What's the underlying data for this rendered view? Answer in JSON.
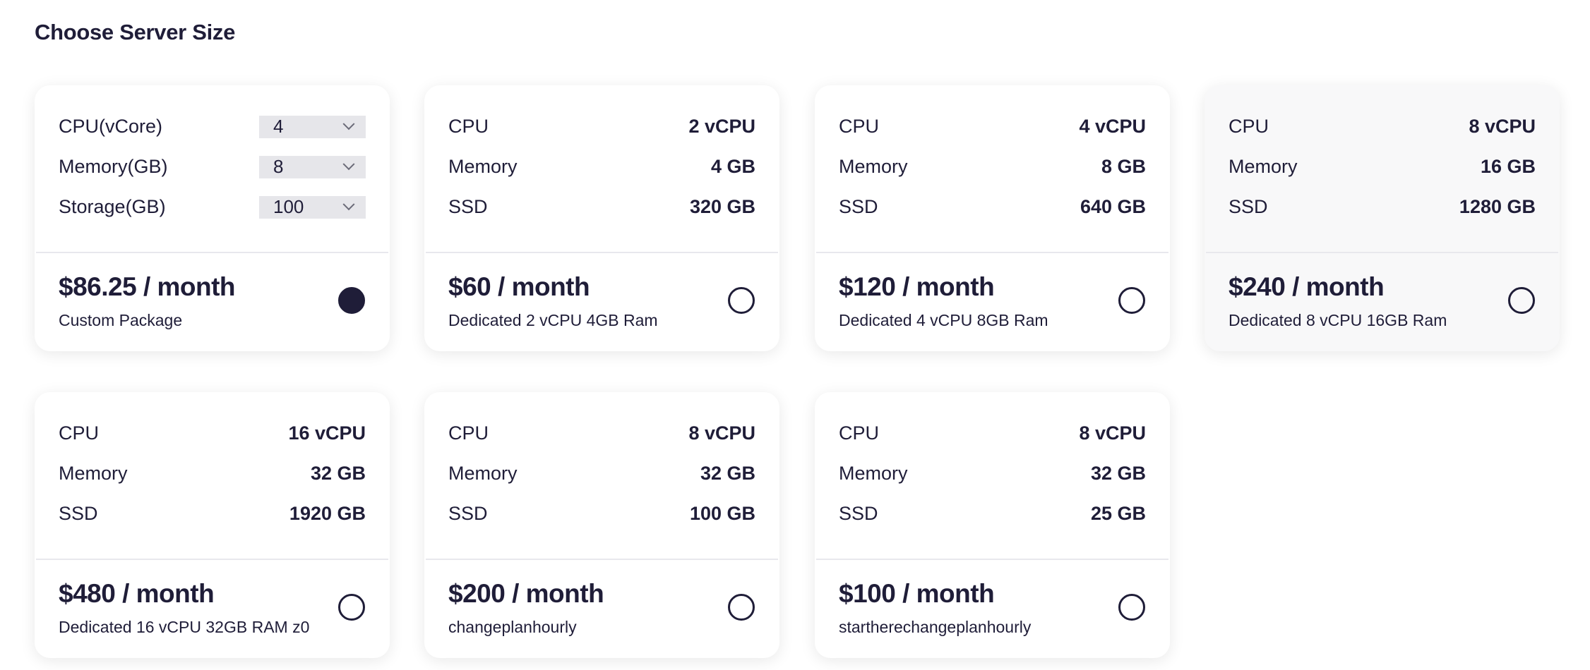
{
  "title": "Choose Server Size",
  "colors": {
    "text": "#1f1d38",
    "select_bg": "#e6e6ea",
    "selected_radio": "#1f1d38"
  },
  "custom": {
    "fields": [
      {
        "label": "CPU(vCore)",
        "value": "4"
      },
      {
        "label": "Memory(GB)",
        "value": "8"
      },
      {
        "label": "Storage(GB)",
        "value": "100"
      }
    ],
    "price": "$86.25 / month",
    "name": "Custom Package",
    "selected": true
  },
  "plans": [
    {
      "cpu_label": "CPU",
      "cpu": "2 vCPU",
      "mem_label": "Memory",
      "mem": "4 GB",
      "ssd_label": "SSD",
      "ssd": "320 GB",
      "price": "$60 / month",
      "name": "Dedicated 2 vCPU 4GB Ram",
      "selected": false
    },
    {
      "cpu_label": "CPU",
      "cpu": "4 vCPU",
      "mem_label": "Memory",
      "mem": "8 GB",
      "ssd_label": "SSD",
      "ssd": "640 GB",
      "price": "$120 / month",
      "name": "Dedicated 4 vCPU 8GB Ram",
      "selected": false
    },
    {
      "cpu_label": "CPU",
      "cpu": "8 vCPU",
      "mem_label": "Memory",
      "mem": "16 GB",
      "ssd_label": "SSD",
      "ssd": "1280 GB",
      "price": "$240 / month",
      "name": "Dedicated 8 vCPU 16GB Ram",
      "selected": false
    },
    {
      "cpu_label": "CPU",
      "cpu": "16 vCPU",
      "mem_label": "Memory",
      "mem": "32 GB",
      "ssd_label": "SSD",
      "ssd": "1920 GB",
      "price": "$480 / month",
      "name": "Dedicated 16 vCPU 32GB RAM z0",
      "selected": false
    },
    {
      "cpu_label": "CPU",
      "cpu": "8 vCPU",
      "mem_label": "Memory",
      "mem": "32 GB",
      "ssd_label": "SSD",
      "ssd": "100 GB",
      "price": "$200 / month",
      "name": "changeplanhourly",
      "selected": false
    },
    {
      "cpu_label": "CPU",
      "cpu": "8 vCPU",
      "mem_label": "Memory",
      "mem": "32 GB",
      "ssd_label": "SSD",
      "ssd": "25 GB",
      "price": "$100 / month",
      "name": "startherechangeplanhourly",
      "selected": false
    }
  ]
}
